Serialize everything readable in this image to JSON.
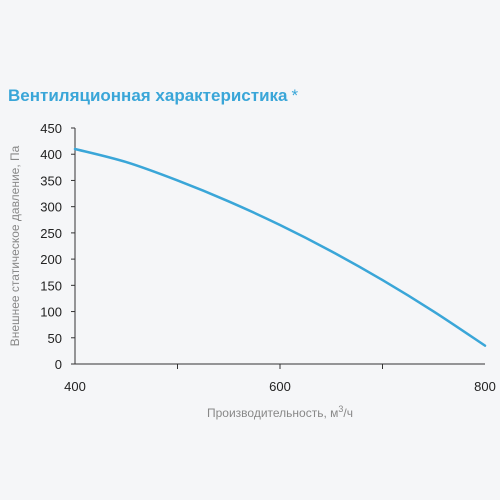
{
  "chart_data": {
    "type": "line",
    "title": "Вентиляционная характеристика",
    "title_marker": "*",
    "xlabel": "Производительность, м",
    "xlabel_sup": "3",
    "xlabel_suffix": "/ч",
    "ylabel": "Внешнее статическое давление, Па",
    "xlim": [
      400,
      800
    ],
    "ylim": [
      0,
      450
    ],
    "x_ticks": [
      "400",
      "600",
      "800"
    ],
    "y_ticks": [
      "0",
      "50",
      "100",
      "150",
      "200",
      "250",
      "300",
      "350",
      "400",
      "450"
    ],
    "grid": false,
    "line_color": "#3aa6d8",
    "series": [
      {
        "x": [
          400,
          450,
          500,
          550,
          600,
          650,
          700,
          750,
          800
        ],
        "values": [
          410,
          385,
          350,
          310,
          265,
          215,
          160,
          100,
          35
        ]
      }
    ]
  }
}
